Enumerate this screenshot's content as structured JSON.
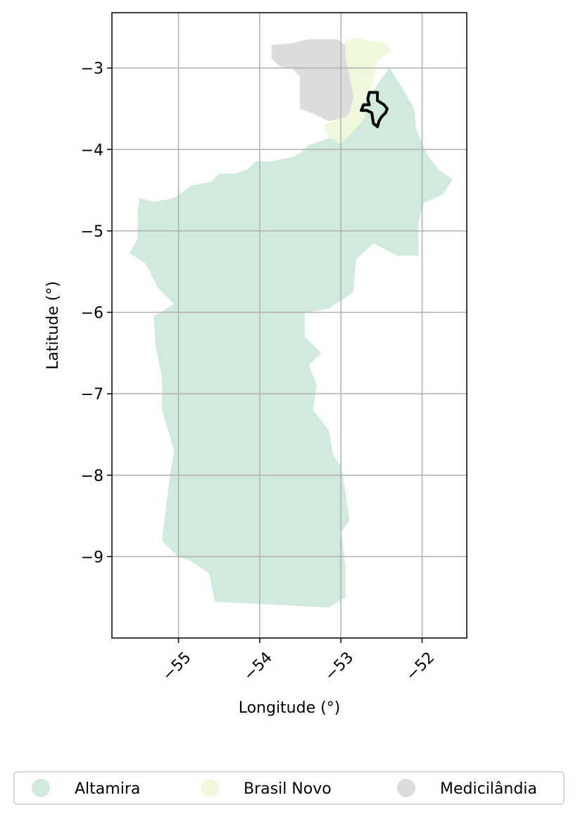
{
  "chart_data": {
    "type": "map",
    "xlabel": "Longitude (°)",
    "ylabel": "Latitude (°)",
    "xlim": [
      -55.82,
      -51.45
    ],
    "ylim": [
      -10.0,
      -2.32
    ],
    "x_ticks": [
      {
        "value": -55,
        "label": "−55"
      },
      {
        "value": -54,
        "label": "−54"
      },
      {
        "value": -53,
        "label": "−53"
      },
      {
        "value": -52,
        "label": "−52"
      }
    ],
    "y_ticks": [
      {
        "value": -3,
        "label": "−3"
      },
      {
        "value": -4,
        "label": "−4"
      },
      {
        "value": -5,
        "label": "−5"
      },
      {
        "value": -6,
        "label": "−6"
      },
      {
        "value": -7,
        "label": "−7"
      },
      {
        "value": -8,
        "label": "−8"
      },
      {
        "value": -9,
        "label": "−9"
      }
    ],
    "grid": true,
    "legend_position": "bottom-center",
    "regions": [
      {
        "name": "Altamira",
        "color": "#d0ebdd",
        "outline": [
          [
            -52.65,
            -3.35
          ],
          [
            -52.4,
            -3.0
          ],
          [
            -52.22,
            -3.3
          ],
          [
            -52.1,
            -3.5
          ],
          [
            -52.08,
            -3.75
          ],
          [
            -51.95,
            -4.05
          ],
          [
            -51.8,
            -4.25
          ],
          [
            -51.63,
            -4.37
          ],
          [
            -51.75,
            -4.55
          ],
          [
            -51.98,
            -4.65
          ],
          [
            -52.05,
            -4.9
          ],
          [
            -52.05,
            -5.3
          ],
          [
            -52.3,
            -5.3
          ],
          [
            -52.6,
            -5.15
          ],
          [
            -52.82,
            -5.35
          ],
          [
            -52.85,
            -5.75
          ],
          [
            -53.15,
            -5.95
          ],
          [
            -53.45,
            -6.0
          ],
          [
            -53.45,
            -6.3
          ],
          [
            -53.25,
            -6.5
          ],
          [
            -53.4,
            -6.65
          ],
          [
            -53.3,
            -6.9
          ],
          [
            -53.35,
            -7.2
          ],
          [
            -53.15,
            -7.45
          ],
          [
            -53.1,
            -7.75
          ],
          [
            -53.0,
            -7.9
          ],
          [
            -52.95,
            -8.2
          ],
          [
            -52.9,
            -8.55
          ],
          [
            -53.0,
            -8.7
          ],
          [
            -52.95,
            -9.1
          ],
          [
            -52.95,
            -9.5
          ],
          [
            -53.15,
            -9.62
          ],
          [
            -54.55,
            -9.55
          ],
          [
            -54.62,
            -9.2
          ],
          [
            -54.85,
            -9.05
          ],
          [
            -55.0,
            -9.0
          ],
          [
            -55.2,
            -8.8
          ],
          [
            -55.15,
            -8.4
          ],
          [
            -55.1,
            -8.0
          ],
          [
            -55.05,
            -7.7
          ],
          [
            -55.2,
            -7.2
          ],
          [
            -55.2,
            -6.8
          ],
          [
            -55.28,
            -6.4
          ],
          [
            -55.3,
            -6.05
          ],
          [
            -55.05,
            -5.9
          ],
          [
            -55.25,
            -5.7
          ],
          [
            -55.4,
            -5.4
          ],
          [
            -55.6,
            -5.27
          ],
          [
            -55.5,
            -5.1
          ],
          [
            -55.5,
            -4.8
          ],
          [
            -55.48,
            -4.6
          ],
          [
            -55.3,
            -4.65
          ],
          [
            -55.05,
            -4.6
          ],
          [
            -54.85,
            -4.45
          ],
          [
            -54.6,
            -4.4
          ],
          [
            -54.5,
            -4.3
          ],
          [
            -54.3,
            -4.3
          ],
          [
            -54.15,
            -4.25
          ],
          [
            -54.05,
            -4.15
          ],
          [
            -53.85,
            -4.15
          ],
          [
            -53.6,
            -4.1
          ],
          [
            -53.5,
            -4.05
          ],
          [
            -53.4,
            -3.95
          ],
          [
            -53.25,
            -3.9
          ],
          [
            -53.1,
            -3.85
          ],
          [
            -52.95,
            -3.8
          ],
          [
            -52.8,
            -3.72
          ],
          [
            -52.7,
            -3.6
          ],
          [
            -52.75,
            -3.4
          ]
        ]
      },
      {
        "name": "Brasil Novo",
        "color": "#f0f8dc",
        "outline": [
          [
            -52.95,
            -2.68
          ],
          [
            -52.8,
            -2.63
          ],
          [
            -52.62,
            -2.68
          ],
          [
            -52.5,
            -2.68
          ],
          [
            -52.38,
            -2.78
          ],
          [
            -52.55,
            -2.9
          ],
          [
            -52.6,
            -3.1
          ],
          [
            -52.65,
            -3.35
          ],
          [
            -52.75,
            -3.45
          ],
          [
            -52.7,
            -3.6
          ],
          [
            -52.8,
            -3.72
          ],
          [
            -52.9,
            -3.82
          ],
          [
            -53.0,
            -3.92
          ],
          [
            -53.15,
            -3.85
          ],
          [
            -53.2,
            -3.7
          ],
          [
            -52.95,
            -3.6
          ],
          [
            -52.85,
            -3.35
          ],
          [
            -52.9,
            -3.1
          ],
          [
            -52.95,
            -2.85
          ]
        ]
      },
      {
        "name": "Medicilândia",
        "color": "#dcdcdc",
        "outline": [
          [
            -53.85,
            -2.72
          ],
          [
            -53.6,
            -2.7
          ],
          [
            -53.4,
            -2.65
          ],
          [
            -53.2,
            -2.65
          ],
          [
            -53.05,
            -2.65
          ],
          [
            -52.95,
            -2.72
          ],
          [
            -52.95,
            -2.85
          ],
          [
            -52.9,
            -3.1
          ],
          [
            -52.85,
            -3.35
          ],
          [
            -52.9,
            -3.55
          ],
          [
            -52.95,
            -3.6
          ],
          [
            -53.15,
            -3.65
          ],
          [
            -53.25,
            -3.6
          ],
          [
            -53.35,
            -3.55
          ],
          [
            -53.5,
            -3.5
          ],
          [
            -53.5,
            -3.1
          ],
          [
            -53.6,
            -3.0
          ],
          [
            -53.75,
            -2.98
          ],
          [
            -53.85,
            -2.88
          ]
        ]
      }
    ],
    "highlight_outline": [
      [
        -52.65,
        -3.3
      ],
      [
        -52.55,
        -3.3
      ],
      [
        -52.55,
        -3.4
      ],
      [
        -52.47,
        -3.45
      ],
      [
        -52.43,
        -3.5
      ],
      [
        -52.45,
        -3.55
      ],
      [
        -52.5,
        -3.6
      ],
      [
        -52.53,
        -3.65
      ],
      [
        -52.55,
        -3.72
      ],
      [
        -52.6,
        -3.68
      ],
      [
        -52.62,
        -3.55
      ],
      [
        -52.68,
        -3.52
      ],
      [
        -52.75,
        -3.52
      ],
      [
        -52.72,
        -3.45
      ],
      [
        -52.65,
        -3.45
      ],
      [
        -52.67,
        -3.38
      ]
    ],
    "legend": [
      {
        "label": "Altamira",
        "color": "#d0ebdd"
      },
      {
        "label": "Brasil Novo",
        "color": "#f0f8dc"
      },
      {
        "label": "Medicilândia",
        "color": "#dcdcdc"
      }
    ]
  }
}
